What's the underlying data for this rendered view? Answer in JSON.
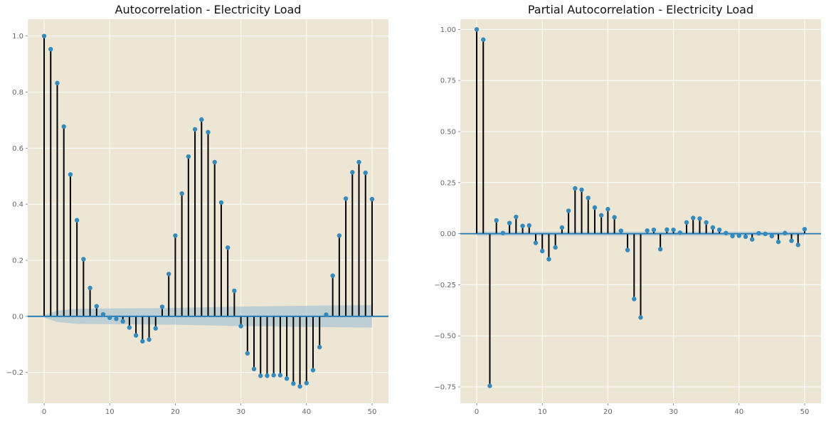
{
  "chart_data": [
    {
      "type": "stem",
      "title": "Autocorrelation - Electricity Load",
      "xlabel": "",
      "ylabel": "",
      "xlim": [
        -2.5,
        52.5
      ],
      "ylim": [
        -0.31,
        1.06
      ],
      "xticks": [
        0,
        10,
        20,
        30,
        40,
        50
      ],
      "xtick_labels": [
        "0",
        "10",
        "20",
        "30",
        "40",
        "50"
      ],
      "yticks": [
        -0.2,
        0.0,
        0.2,
        0.4,
        0.6,
        0.8,
        1.0
      ],
      "ytick_labels": [
        "−0.2",
        "0.0",
        "0.2",
        "0.4",
        "0.6",
        "0.8",
        "1.0"
      ],
      "grid": true,
      "x": [
        0,
        1,
        2,
        3,
        4,
        5,
        6,
        7,
        8,
        9,
        10,
        11,
        12,
        13,
        14,
        15,
        16,
        17,
        18,
        19,
        20,
        21,
        22,
        23,
        24,
        25,
        26,
        27,
        28,
        29,
        30,
        31,
        32,
        33,
        34,
        35,
        36,
        37,
        38,
        39,
        40,
        41,
        42,
        43,
        44,
        45,
        46,
        47,
        48,
        49,
        50
      ],
      "values": [
        1.0,
        0.953,
        0.832,
        0.677,
        0.506,
        0.343,
        0.204,
        0.101,
        0.036,
        0.007,
        -0.005,
        -0.009,
        -0.018,
        -0.04,
        -0.068,
        -0.089,
        -0.083,
        -0.043,
        0.034,
        0.151,
        0.288,
        0.438,
        0.57,
        0.667,
        0.702,
        0.657,
        0.55,
        0.406,
        0.245,
        0.091,
        -0.035,
        -0.132,
        -0.188,
        -0.212,
        -0.212,
        -0.21,
        -0.21,
        -0.222,
        -0.24,
        -0.25,
        -0.238,
        -0.192,
        -0.11,
        0.006,
        0.145,
        0.288,
        0.42,
        0.514,
        0.55,
        0.512,
        0.418
      ],
      "confidence_band": {
        "x": [
          0,
          2,
          5,
          10,
          20,
          30,
          40,
          50
        ],
        "upper": [
          0.005,
          0.02,
          0.027,
          0.028,
          0.03,
          0.035,
          0.038,
          0.04
        ],
        "lower": [
          -0.005,
          -0.02,
          -0.027,
          -0.028,
          -0.03,
          -0.035,
          -0.038,
          -0.04
        ]
      }
    },
    {
      "type": "stem",
      "title": "Partial Autocorrelation - Electricity Load",
      "xlabel": "",
      "ylabel": "",
      "xlim": [
        -2.5,
        52.5
      ],
      "ylim": [
        -0.83,
        1.05
      ],
      "xticks": [
        0,
        10,
        20,
        30,
        40,
        50
      ],
      "xtick_labels": [
        "0",
        "10",
        "20",
        "30",
        "40",
        "50"
      ],
      "yticks": [
        -0.75,
        -0.5,
        -0.25,
        0.0,
        0.25,
        0.5,
        0.75,
        1.0
      ],
      "ytick_labels": [
        "−0.75",
        "−0.50",
        "−0.25",
        "0.00",
        "0.25",
        "0.50",
        "0.75",
        "1.00"
      ],
      "grid": true,
      "x": [
        0,
        1,
        2,
        3,
        4,
        5,
        6,
        7,
        8,
        9,
        10,
        11,
        12,
        13,
        14,
        15,
        16,
        17,
        18,
        19,
        20,
        21,
        22,
        23,
        24,
        25,
        26,
        27,
        28,
        29,
        30,
        31,
        32,
        33,
        34,
        35,
        36,
        37,
        38,
        39,
        40,
        41,
        42,
        43,
        44,
        45,
        46,
        47,
        48,
        49,
        50
      ],
      "values": [
        1.0,
        0.95,
        -0.745,
        0.065,
        0.003,
        0.052,
        0.082,
        0.038,
        0.04,
        -0.045,
        -0.085,
        -0.125,
        -0.067,
        0.03,
        0.112,
        0.222,
        0.215,
        0.175,
        0.128,
        0.09,
        0.12,
        0.08,
        0.014,
        -0.08,
        -0.32,
        -0.41,
        0.015,
        0.019,
        -0.076,
        0.02,
        0.019,
        0.005,
        0.055,
        0.077,
        0.074,
        0.055,
        0.03,
        0.019,
        0.003,
        -0.012,
        -0.01,
        -0.015,
        -0.028,
        0.002,
        -0.001,
        -0.012,
        -0.04,
        0.003,
        -0.035,
        -0.055,
        0.022
      ],
      "confidence_band": {
        "x": [
          0,
          50
        ],
        "upper": [
          0.01,
          0.01
        ],
        "lower": [
          -0.01,
          -0.01
        ]
      }
    }
  ]
}
